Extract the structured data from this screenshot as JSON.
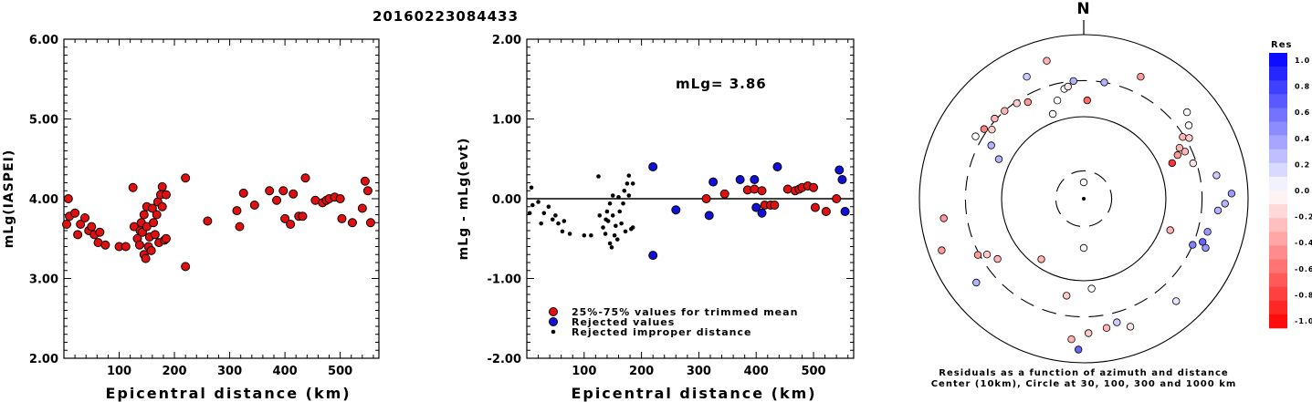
{
  "figure_title": "20160223084433",
  "chart_data": [
    {
      "type": "scatter",
      "xlabel": "Epicentral distance (km)",
      "ylabel": "mLg(IASPEI)",
      "xlim": [
        0,
        570
      ],
      "ylim": [
        2.0,
        6.0
      ],
      "x_ticks": [
        "100",
        "200",
        "300",
        "400",
        "500"
      ],
      "y_ticks": [
        "2.00",
        "3.00",
        "4.00",
        "5.00",
        "6.00"
      ],
      "grid": false,
      "series": [
        {
          "marker": "filled circle",
          "color": "#e01010",
          "points": [
            [
              8,
              4.0
            ],
            [
              5,
              3.68
            ],
            [
              10,
              3.78
            ],
            [
              20,
              3.82
            ],
            [
              25,
              3.55
            ],
            [
              30,
              3.68
            ],
            [
              38,
              3.76
            ],
            [
              45,
              3.6
            ],
            [
              50,
              3.65
            ],
            [
              55,
              3.55
            ],
            [
              62,
              3.45
            ],
            [
              65,
              3.58
            ],
            [
              75,
              3.42
            ],
            [
              100,
              3.4
            ],
            [
              112,
              3.4
            ],
            [
              125,
              4.14
            ],
            [
              127,
              3.65
            ],
            [
              133,
              3.5
            ],
            [
              137,
              3.42
            ],
            [
              138,
              3.6
            ],
            [
              140,
              3.7
            ],
            [
              142,
              3.58
            ],
            [
              145,
              3.8
            ],
            [
              145,
              3.3
            ],
            [
              148,
              3.25
            ],
            [
              150,
              3.9
            ],
            [
              150,
              3.65
            ],
            [
              153,
              3.4
            ],
            [
              155,
              3.52
            ],
            [
              158,
              3.35
            ],
            [
              160,
              3.88
            ],
            [
              162,
              3.7
            ],
            [
              165,
              3.55
            ],
            [
              168,
              3.8
            ],
            [
              170,
              3.96
            ],
            [
              172,
              3.45
            ],
            [
              175,
              4.05
            ],
            [
              178,
              3.9
            ],
            [
              178,
              4.15
            ],
            [
              182,
              3.48
            ],
            [
              185,
              3.5
            ],
            [
              185,
              4.05
            ],
            [
              220,
              4.26
            ],
            [
              220,
              3.15
            ],
            [
              260,
              3.72
            ],
            [
              313,
              3.85
            ],
            [
              318,
              3.65
            ],
            [
              325,
              4.07
            ],
            [
              345,
              3.92
            ],
            [
              372,
              4.1
            ],
            [
              385,
              3.98
            ],
            [
              397,
              4.1
            ],
            [
              400,
              3.75
            ],
            [
              410,
              3.68
            ],
            [
              415,
              4.06
            ],
            [
              425,
              3.78
            ],
            [
              432,
              3.78
            ],
            [
              437,
              4.26
            ],
            [
              455,
              3.98
            ],
            [
              468,
              3.95
            ],
            [
              475,
              3.98
            ],
            [
              480,
              4.0
            ],
            [
              490,
              4.02
            ],
            [
              500,
              4.0
            ],
            [
              503,
              3.75
            ],
            [
              522,
              3.7
            ],
            [
              540,
              3.88
            ],
            [
              545,
              4.22
            ],
            [
              550,
              4.1
            ],
            [
              555,
              3.7
            ]
          ]
        }
      ]
    },
    {
      "type": "scatter",
      "xlabel": "Epicentral distance (km)",
      "ylabel": "mLg - mLg(evt)",
      "xlim": [
        0,
        570
      ],
      "ylim": [
        -2.0,
        2.0
      ],
      "x_ticks": [
        "100",
        "200",
        "300",
        "400",
        "500"
      ],
      "y_ticks": [
        "-2.00",
        "-1.00",
        "0.00",
        "1.00",
        "2.00"
      ],
      "reference_line": 0.0,
      "annotation": "mLg= 3.86",
      "grid": false,
      "legend_position": "bottom-left",
      "series": [
        {
          "name": "25%-75% values for trimmed mean",
          "color": "#e01010",
          "points": [
            [
              313,
              0.0
            ],
            [
              345,
              0.06
            ],
            [
              385,
              0.11
            ],
            [
              397,
              0.12
            ],
            [
              410,
              0.1
            ],
            [
              415,
              -0.08
            ],
            [
              425,
              -0.08
            ],
            [
              432,
              -0.08
            ],
            [
              455,
              0.12
            ],
            [
              468,
              0.1
            ],
            [
              475,
              0.12
            ],
            [
              480,
              0.14
            ],
            [
              490,
              0.16
            ],
            [
              500,
              0.14
            ],
            [
              503,
              -0.11
            ],
            [
              522,
              -0.16
            ],
            [
              540,
              0.0
            ]
          ]
        },
        {
          "name": "Rejected values",
          "color": "#1010d8",
          "points": [
            [
              220,
              0.4
            ],
            [
              220,
              -0.71
            ],
            [
              260,
              -0.14
            ],
            [
              318,
              -0.21
            ],
            [
              325,
              0.21
            ],
            [
              372,
              0.24
            ],
            [
              397,
              0.24
            ],
            [
              400,
              -0.11
            ],
            [
              410,
              -0.18
            ],
            [
              437,
              0.4
            ],
            [
              545,
              0.36
            ],
            [
              550,
              0.24
            ],
            [
              555,
              -0.16
            ]
          ]
        },
        {
          "name": "Rejected improper distance",
          "color": "#000000",
          "marker": "small dot",
          "points": [
            [
              8,
              0.14
            ],
            [
              5,
              -0.18
            ],
            [
              10,
              -0.08
            ],
            [
              20,
              -0.04
            ],
            [
              25,
              -0.31
            ],
            [
              30,
              -0.18
            ],
            [
              38,
              -0.1
            ],
            [
              45,
              -0.26
            ],
            [
              50,
              -0.21
            ],
            [
              55,
              -0.31
            ],
            [
              62,
              -0.41
            ],
            [
              65,
              -0.28
            ],
            [
              75,
              -0.44
            ],
            [
              100,
              -0.46
            ],
            [
              112,
              -0.46
            ],
            [
              125,
              0.28
            ],
            [
              127,
              -0.21
            ],
            [
              133,
              -0.36
            ],
            [
              137,
              -0.44
            ],
            [
              138,
              -0.26
            ],
            [
              140,
              -0.16
            ],
            [
              142,
              -0.28
            ],
            [
              145,
              -0.06
            ],
            [
              145,
              -0.56
            ],
            [
              148,
              -0.61
            ],
            [
              150,
              0.04
            ],
            [
              150,
              -0.21
            ],
            [
              153,
              -0.46
            ],
            [
              155,
              -0.34
            ],
            [
              158,
              -0.51
            ],
            [
              160,
              0.02
            ],
            [
              162,
              -0.16
            ],
            [
              165,
              -0.31
            ],
            [
              168,
              -0.06
            ],
            [
              170,
              0.1
            ],
            [
              172,
              -0.41
            ],
            [
              175,
              0.19
            ],
            [
              178,
              0.04
            ],
            [
              178,
              0.29
            ],
            [
              182,
              -0.38
            ],
            [
              185,
              -0.36
            ],
            [
              185,
              0.19
            ]
          ]
        }
      ]
    },
    {
      "type": "scatter",
      "subtype": "polar",
      "north_label": "N",
      "caption_line1": "Residuals as a function of azimuth and distance",
      "caption_line2": "Center (10km), Circle at 30, 100, 300 and 1000 km",
      "colorbar_title": "Res",
      "colorbar_ticks": [
        "1.0",
        "0.8",
        "0.6",
        "0.4",
        "0.2",
        "0.0",
        "-0.2",
        "-0.4",
        "-0.6",
        "-0.8",
        "-1.0"
      ],
      "colorbar_range": [
        -1.0,
        1.0
      ],
      "rings_km": [
        30,
        100,
        300,
        1000
      ],
      "points_azimuth_deg_distance_norm_residual": [
        [
          0,
          0.1,
          0.0
        ],
        [
          180,
          0.3,
          0.0
        ],
        [
          175,
          0.55,
          0.0
        ],
        [
          215,
          0.45,
          -0.3
        ],
        [
          190,
          0.6,
          -0.2
        ],
        [
          300,
          0.65,
          0.3
        ],
        [
          295,
          0.57,
          0.3
        ],
        [
          340,
          0.55,
          0.0
        ],
        [
          345,
          0.62,
          0.0
        ],
        [
          350,
          0.68,
          0.0
        ],
        [
          355,
          0.72,
          0.3
        ],
        [
          352,
          0.69,
          -0.1
        ],
        [
          10,
          0.72,
          0.3
        ],
        [
          2,
          0.6,
          -0.6
        ],
        [
          330,
          0.68,
          -0.4
        ],
        [
          325,
          0.71,
          -0.2
        ],
        [
          318,
          0.72,
          -0.3
        ],
        [
          312,
          0.73,
          -0.3
        ],
        [
          305,
          0.74,
          -0.5
        ],
        [
          300,
          0.76,
          0.0
        ],
        [
          307,
          0.7,
          -0.2
        ],
        [
          335,
          0.82,
          0.2
        ],
        [
          345,
          0.87,
          -0.3
        ],
        [
          25,
          0.82,
          -0.4
        ],
        [
          50,
          0.82,
          0.0
        ],
        [
          58,
          0.71,
          -0.3
        ],
        [
          55,
          0.78,
          0.0
        ],
        [
          65,
          0.68,
          -0.3
        ],
        [
          62,
          0.66,
          -0.3
        ],
        [
          65,
          0.63,
          -0.4
        ],
        [
          68,
          0.58,
          -0.8
        ],
        [
          72,
          0.7,
          -0.1
        ],
        [
          80,
          0.82,
          0.2
        ],
        [
          88,
          0.9,
          0.4
        ],
        [
          92,
          0.86,
          0.3
        ],
        [
          95,
          0.82,
          0.3
        ],
        [
          105,
          0.78,
          0.4
        ],
        [
          110,
          0.77,
          0.6
        ],
        [
          113,
          0.72,
          0.5
        ],
        [
          112,
          0.8,
          0.4
        ],
        [
          138,
          0.84,
          0.1
        ],
        [
          160,
          0.83,
          -0.1
        ],
        [
          165,
          0.78,
          0.2
        ],
        [
          170,
          0.8,
          -0.3
        ],
        [
          178,
          0.82,
          -0.2
        ],
        [
          182,
          0.92,
          0.6
        ],
        [
          185,
          0.86,
          -0.3
        ],
        [
          232,
          0.83,
          0.3
        ],
        [
          235,
          0.64,
          -0.3
        ],
        [
          240,
          0.68,
          -0.2
        ],
        [
          242,
          0.73,
          -0.4
        ],
        [
          262,
          0.86,
          -0.4
        ],
        [
          250,
          0.92,
          -0.4
        ],
        [
          110,
          0.56,
          -0.3
        ],
        [
          60,
          0.74,
          -0.2
        ]
      ]
    }
  ]
}
